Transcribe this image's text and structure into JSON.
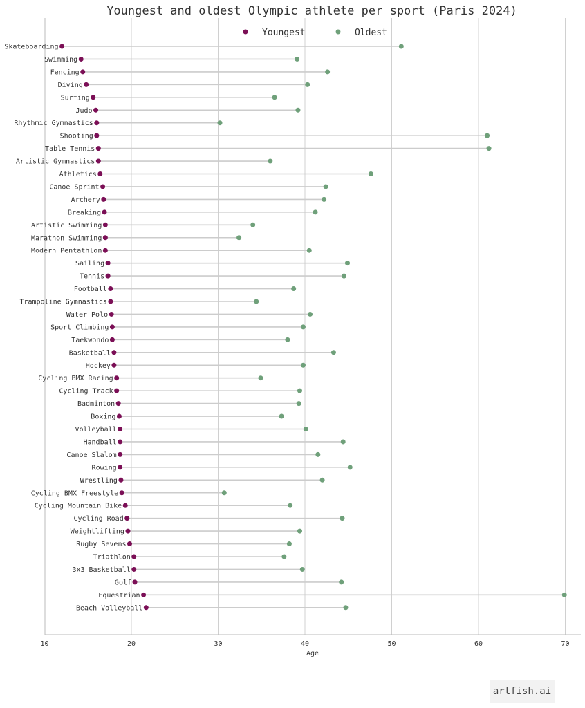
{
  "chart_data": {
    "type": "dumbbell",
    "title": "Youngest and oldest Olympic athlete per sport (Paris 2024)",
    "xlabel": "Age",
    "ylabel": "",
    "xlim": [
      10,
      70
    ],
    "xticks": [
      10,
      20,
      30,
      40,
      50,
      60,
      70
    ],
    "grid": "vertical",
    "legend_position": "top-center",
    "categories": [
      "Skateboarding",
      "Swimming",
      "Fencing",
      "Diving",
      "Surfing",
      "Judo",
      "Rhythmic Gymnastics",
      "Shooting",
      "Table Tennis",
      "Artistic Gymnastics",
      "Athletics",
      "Canoe Sprint",
      "Archery",
      "Breaking",
      "Artistic Swimming",
      "Marathon Swimming",
      "Modern Pentathlon",
      "Sailing",
      "Tennis",
      "Football",
      "Trampoline Gymnastics",
      "Water Polo",
      "Sport Climbing",
      "Taekwondo",
      "Basketball",
      "Hockey",
      "Cycling BMX Racing",
      "Cycling Track",
      "Badminton",
      "Boxing",
      "Volleyball",
      "Handball",
      "Canoe Slalom",
      "Rowing",
      "Wrestling",
      "Cycling BMX Freestyle",
      "Cycling Mountain Bike",
      "Cycling Road",
      "Weightlifting",
      "Rugby Sevens",
      "Triathlon",
      "3x3 Basketball",
      "Golf",
      "Equestrian",
      "Beach Volleyball"
    ],
    "series": [
      {
        "name": "Youngest",
        "color": "#7b0f56",
        "values": [
          12.0,
          14.2,
          14.4,
          14.8,
          15.6,
          15.9,
          16.0,
          16.0,
          16.2,
          16.2,
          16.4,
          16.7,
          16.8,
          16.9,
          17.0,
          17.0,
          17.0,
          17.3,
          17.3,
          17.6,
          17.6,
          17.7,
          17.8,
          17.8,
          18.0,
          18.0,
          18.3,
          18.3,
          18.5,
          18.6,
          18.7,
          18.7,
          18.7,
          18.7,
          18.8,
          18.9,
          19.3,
          19.5,
          19.6,
          19.8,
          20.3,
          20.3,
          20.4,
          21.4,
          21.7
        ]
      },
      {
        "name": "Oldest",
        "color": "#6fa07a",
        "values": [
          51.1,
          39.1,
          42.6,
          40.3,
          36.5,
          39.2,
          30.2,
          61.0,
          61.2,
          36.0,
          47.6,
          42.4,
          42.2,
          41.2,
          34.0,
          32.4,
          40.5,
          44.9,
          44.5,
          38.7,
          34.4,
          40.6,
          39.8,
          38.0,
          43.3,
          39.8,
          34.9,
          39.4,
          39.3,
          37.3,
          40.1,
          44.4,
          41.5,
          45.2,
          42.0,
          30.7,
          38.3,
          44.3,
          39.4,
          38.2,
          37.6,
          39.7,
          44.2,
          69.9,
          44.7
        ]
      }
    ],
    "connector_color": "#cccccc",
    "grid_color": "#d0d0d0"
  },
  "watermark": "artfish.ai"
}
